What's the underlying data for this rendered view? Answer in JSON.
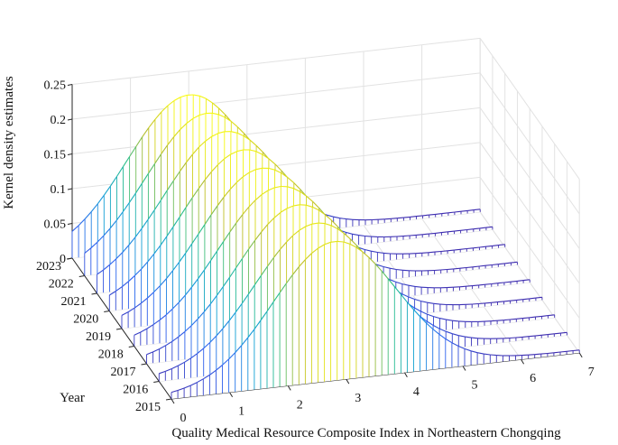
{
  "chart_data": {
    "type": "surface3d",
    "title": "",
    "xlabel": "Quality Medical Resource Composite Index in Northeastern Chongqing",
    "ylabel": "Year",
    "zlabel": "Kernel density estimates",
    "x_ticks": [
      "0",
      "1",
      "2",
      "3",
      "4",
      "5",
      "6",
      "7"
    ],
    "y_ticks": [
      "2015",
      "2016",
      "2017",
      "2018",
      "2019",
      "2020",
      "2021",
      "2022",
      "2023"
    ],
    "z_ticks": [
      "0",
      "0.05",
      "0.1",
      "0.15",
      "0.2",
      "0.25"
    ],
    "xlim": [
      0,
      7
    ],
    "zlim": [
      0,
      0.25
    ],
    "grid": true,
    "colormap": "parula",
    "series": [
      {
        "year": "2015",
        "peak_x": 2.8,
        "peak_density": 0.196,
        "spread": 1.05
      },
      {
        "year": "2016",
        "peak_x": 2.7,
        "peak_density": 0.198,
        "spread": 1.05
      },
      {
        "year": "2017",
        "peak_x": 2.6,
        "peak_density": 0.2,
        "spread": 1.05
      },
      {
        "year": "2018",
        "peak_x": 2.5,
        "peak_density": 0.202,
        "spread": 1.05
      },
      {
        "year": "2019",
        "peak_x": 2.4,
        "peak_density": 0.204,
        "spread": 1.05
      },
      {
        "year": "2020",
        "peak_x": 2.3,
        "peak_density": 0.206,
        "spread": 1.05
      },
      {
        "year": "2021",
        "peak_x": 2.2,
        "peak_density": 0.208,
        "spread": 1.05
      },
      {
        "year": "2022",
        "peak_x": 2.1,
        "peak_density": 0.21,
        "spread": 1.05
      },
      {
        "year": "2023",
        "peak_x": 2.0,
        "peak_density": 0.212,
        "spread": 1.05
      }
    ]
  }
}
